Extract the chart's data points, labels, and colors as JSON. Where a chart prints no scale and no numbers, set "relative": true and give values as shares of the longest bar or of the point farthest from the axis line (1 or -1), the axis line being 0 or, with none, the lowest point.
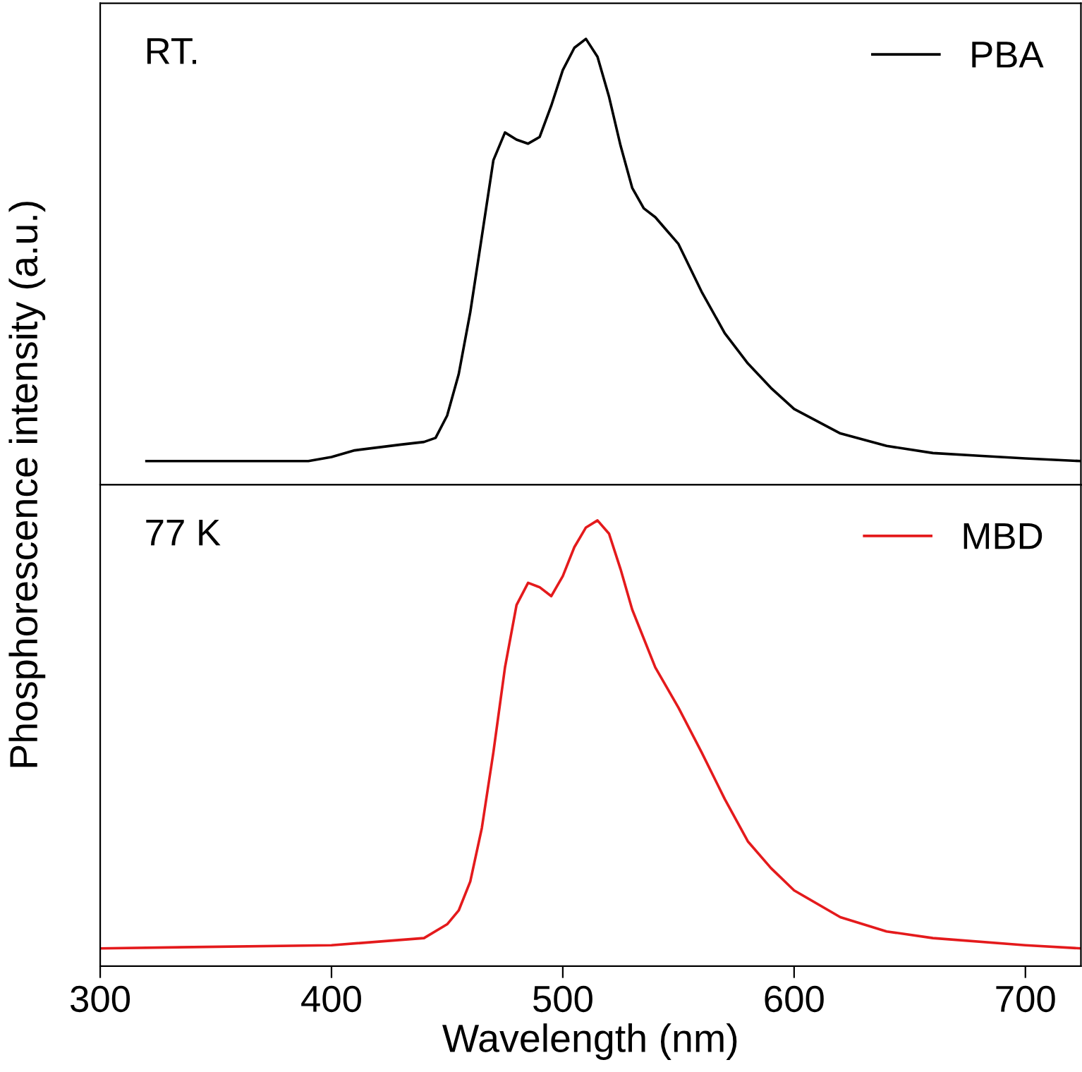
{
  "chart_data": [
    {
      "type": "line",
      "ylabel": "Phosphorescence intensity (a.u.)",
      "relative": true,
      "xlim": [
        300,
        724
      ],
      "tick_labels": false,
      "legend": "top right",
      "annotations": [
        "RT."
      ],
      "series": [
        {
          "name": "PBA",
          "color": "#000000",
          "x": [
            320,
            390,
            400,
            410,
            430,
            440,
            445,
            450,
            455,
            460,
            465,
            470,
            475,
            480,
            485,
            490,
            495,
            500,
            505,
            510,
            515,
            520,
            525,
            530,
            535,
            540,
            545,
            550,
            560,
            570,
            580,
            590,
            600,
            620,
            640,
            660,
            680,
            700,
            724
          ],
          "values": [
            0.053,
            0.053,
            0.062,
            0.077,
            0.09,
            0.096,
            0.105,
            0.155,
            0.248,
            0.387,
            0.557,
            0.728,
            0.79,
            0.774,
            0.765,
            0.78,
            0.85,
            0.93,
            0.98,
            1,
            0.96,
            0.87,
            0.76,
            0.666,
            0.62,
            0.6,
            0.57,
            0.54,
            0.433,
            0.34,
            0.272,
            0.217,
            0.17,
            0.115,
            0.087,
            0.071,
            0.065,
            0.059,
            0.053
          ]
        }
      ]
    },
    {
      "type": "line",
      "xlabel": "Wavelength (nm)",
      "relative": true,
      "xlim": [
        300,
        724
      ],
      "xticks": [
        300,
        400,
        500,
        600,
        700
      ],
      "tick_labels": "x",
      "legend": "top right",
      "annotations": [
        "77 K"
      ],
      "series": [
        {
          "name": "MBD",
          "color": "#e41a1c",
          "x": [
            300,
            400,
            440,
            450,
            455,
            460,
            465,
            470,
            475,
            480,
            485,
            490,
            495,
            500,
            505,
            510,
            515,
            520,
            525,
            530,
            540,
            550,
            560,
            570,
            580,
            590,
            600,
            620,
            640,
            660,
            700,
            724
          ],
          "values": [
            0.04,
            0.047,
            0.063,
            0.094,
            0.125,
            0.19,
            0.31,
            0.48,
            0.67,
            0.81,
            0.86,
            0.85,
            0.83,
            0.875,
            0.94,
            0.984,
            1,
            0.97,
            0.89,
            0.8,
            0.67,
            0.58,
            0.48,
            0.375,
            0.28,
            0.22,
            0.17,
            0.11,
            0.078,
            0.063,
            0.047,
            0.04
          ]
        }
      ]
    }
  ]
}
